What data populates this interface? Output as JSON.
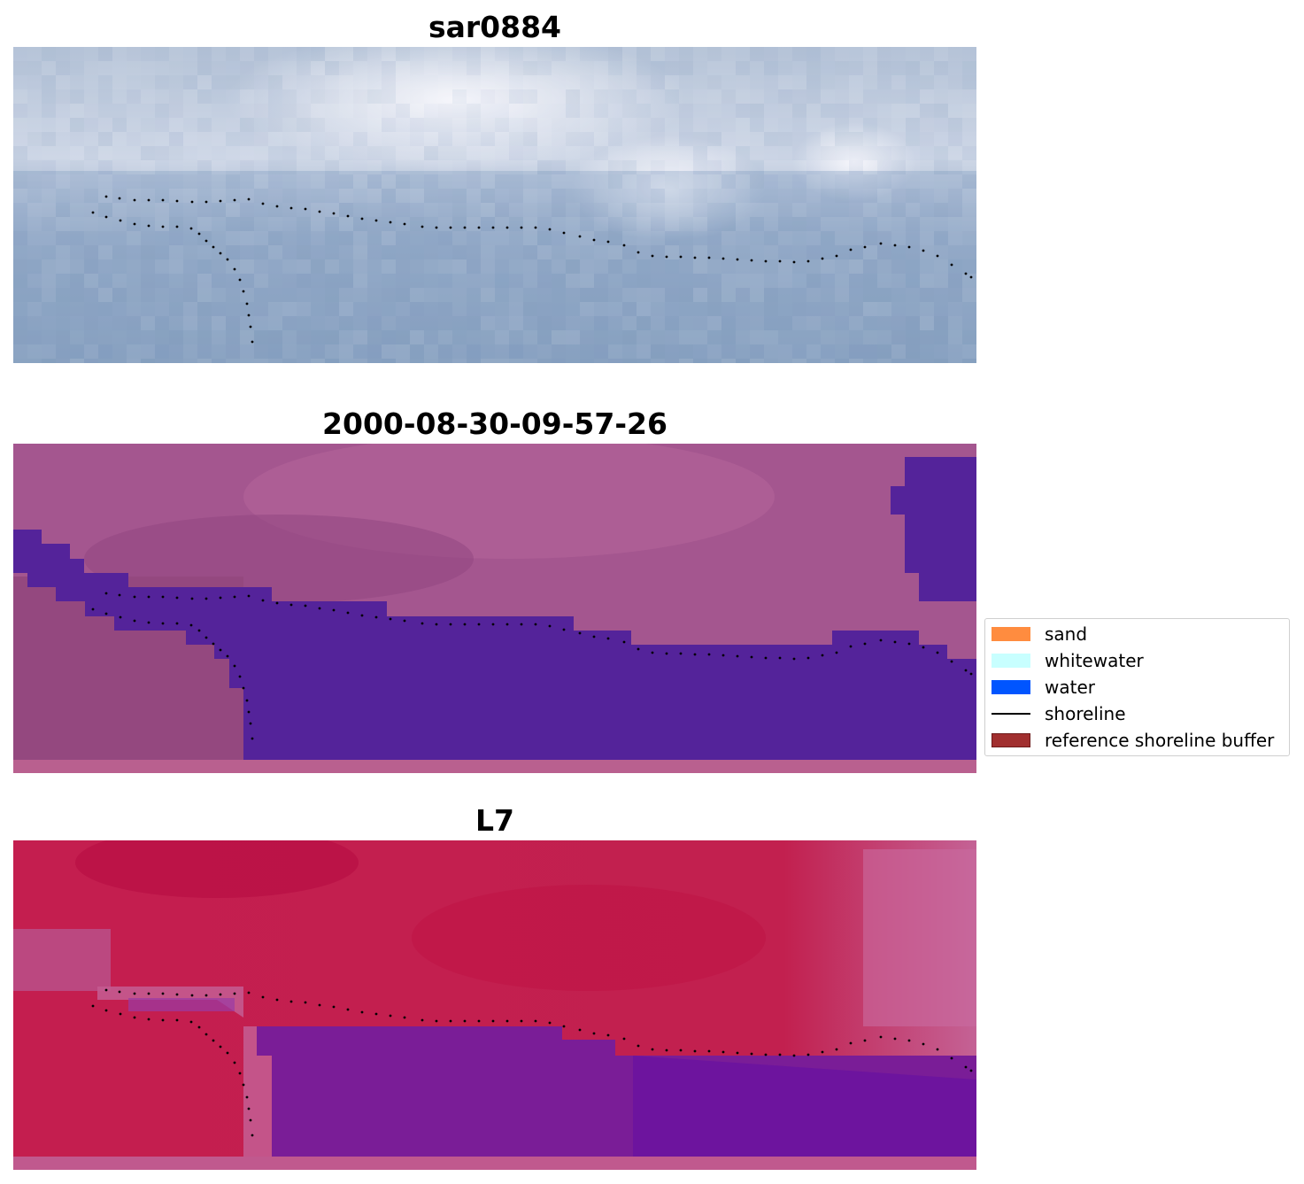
{
  "panels": [
    {
      "title": "sar0884"
    },
    {
      "title": "2000-08-30-09-57-26"
    },
    {
      "title": "L7"
    }
  ],
  "legend": {
    "items": [
      {
        "label": "sand",
        "color": "#ff8c3f",
        "kind": "patch"
      },
      {
        "label": "whitewater",
        "color": "#c8ffff",
        "kind": "patch"
      },
      {
        "label": "water",
        "color": "#0055ff",
        "kind": "patch"
      },
      {
        "label": "shoreline",
        "color": "#000000",
        "kind": "line"
      },
      {
        "label": "reference shoreline buffer",
        "color": "#a12f2f",
        "kind": "patch"
      }
    ]
  },
  "colors": {
    "water_class": "#54239a",
    "land_class": "#9b4c8c",
    "shoreline_points": "#000000"
  }
}
